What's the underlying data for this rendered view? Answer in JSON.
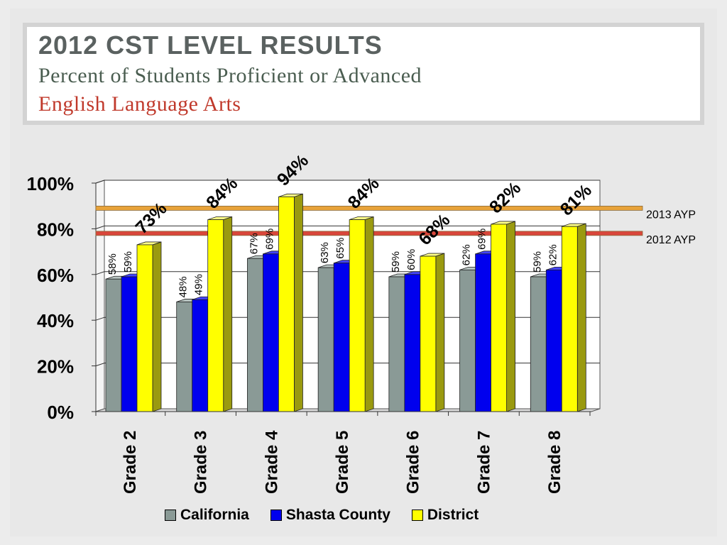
{
  "title": {
    "main": "2012 CST Level Results",
    "sub": "Percent of Students Proficient or Advanced",
    "subject": "English Language Arts"
  },
  "chart_data": {
    "type": "bar",
    "categories": [
      "Grade 2",
      "Grade 3",
      "Grade 4",
      "Grade 5",
      "Grade 6",
      "Grade 7",
      "Grade 8"
    ],
    "series": [
      {
        "name": "California",
        "values": [
          58,
          48,
          67,
          63,
          59,
          62,
          59
        ],
        "labels": [
          "58%",
          "48%",
          "67%",
          "63%",
          "59%",
          "62%",
          "59%"
        ],
        "color": "#8a9a96"
      },
      {
        "name": "Shasta County",
        "values": [
          59,
          49,
          69,
          65,
          60,
          69,
          62
        ],
        "labels": [
          "59%",
          "49%",
          "69%",
          "65%",
          "60%",
          "69%",
          "62%"
        ],
        "color": "#0000ee"
      },
      {
        "name": "District",
        "values": [
          73,
          84,
          94,
          84,
          68,
          82,
          81
        ],
        "labels": [
          "73%",
          "84%",
          "94%",
          "84%",
          "68%",
          "82%",
          "81%"
        ],
        "color": "#ffff00"
      }
    ],
    "y_ticks": [
      "0%",
      "20%",
      "40%",
      "60%",
      "80%",
      "100%"
    ],
    "ylim": [
      0,
      100
    ],
    "reference_lines": [
      {
        "label": "2013 AYP",
        "value": 89,
        "color": "#e8a33a"
      },
      {
        "label": "2012 AYP",
        "value": 78,
        "color": "#d9463b"
      }
    ],
    "legend_position": "bottom",
    "grid": true
  }
}
